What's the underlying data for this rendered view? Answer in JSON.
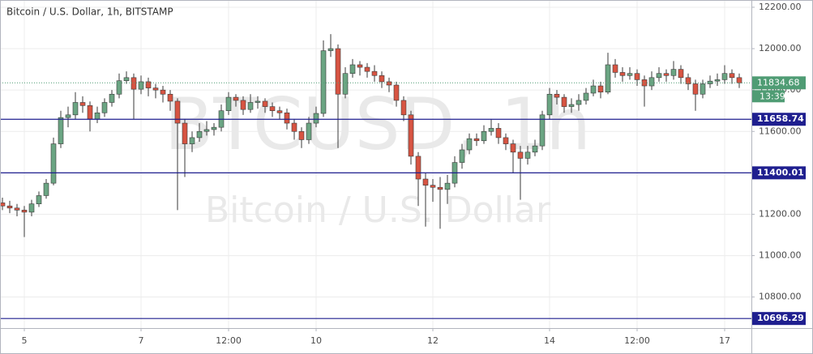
{
  "chart_data": {
    "type": "candlestick",
    "title": "Bitcoin / U.S. Dollar, 1h, BITSTAMP",
    "watermark": "BTCUSD, 1h",
    "watermark_subtitle": "Bitcoin / U.S. Dollar",
    "x": [
      -9,
      -6,
      -3,
      0,
      3,
      6,
      9,
      12,
      15,
      18,
      21,
      24,
      27,
      30,
      33,
      36,
      39,
      42,
      45,
      48,
      51,
      54,
      57,
      60,
      63,
      66,
      69,
      72,
      75,
      78,
      81,
      84,
      87,
      90,
      93,
      96,
      99,
      102,
      105,
      108,
      111,
      114,
      117,
      120,
      123,
      126,
      129,
      132,
      135,
      138,
      141,
      144,
      147,
      150,
      153,
      156,
      159,
      162,
      165,
      168,
      171,
      174,
      177,
      180,
      183,
      186,
      189,
      192,
      195,
      198,
      201,
      204,
      207,
      210,
      213,
      216,
      219,
      222,
      225,
      228,
      231,
      234,
      237,
      240,
      243,
      246,
      249,
      252,
      255,
      258,
      261,
      264,
      267,
      270,
      273,
      276,
      279,
      282,
      285,
      288,
      291,
      294
    ],
    "open": [
      11255,
      11240,
      11230,
      11220,
      11210,
      11250,
      11290,
      11350,
      11540,
      11667,
      11680,
      11740,
      11725,
      11660,
      11690,
      11740,
      11780,
      11845,
      11860,
      11804,
      11840,
      11810,
      11800,
      11780,
      11746,
      11640,
      11540,
      11570,
      11600,
      11609,
      11620,
      11700,
      11765,
      11750,
      11706,
      11740,
      11746,
      11720,
      11700,
      11690,
      11640,
      11600,
      11560,
      11640,
      11687,
      11990,
      12000,
      11780,
      11880,
      11922,
      11910,
      11890,
      11870,
      11840,
      11824,
      11750,
      11680,
      11480,
      11370,
      11340,
      11330,
      11320,
      11350,
      11450,
      11511,
      11565,
      11555,
      11600,
      11615,
      11570,
      11540,
      11500,
      11470,
      11500,
      11530,
      11680,
      11780,
      11765,
      11720,
      11730,
      11750,
      11785,
      11820,
      11790,
      11922,
      11885,
      11870,
      11880,
      11850,
      11820,
      11860,
      11880,
      11870,
      11900,
      11860,
      11830,
      11780,
      11830,
      11843,
      11850,
      11880,
      11860
    ],
    "high": [
      11280,
      11265,
      11250,
      11240,
      11270,
      11310,
      11370,
      11570,
      11700,
      11720,
      11790,
      11770,
      11745,
      11720,
      11760,
      11800,
      11880,
      11890,
      11880,
      11870,
      11860,
      11830,
      11820,
      11800,
      11760,
      11660,
      11600,
      11640,
      11650,
      11640,
      11730,
      11790,
      11780,
      11770,
      11780,
      11770,
      11760,
      11740,
      11720,
      11710,
      11660,
      11620,
      11670,
      11720,
      12040,
      12070,
      12020,
      11910,
      11950,
      11940,
      11930,
      11920,
      11890,
      11860,
      11840,
      11770,
      11700,
      11500,
      11400,
      11370,
      11380,
      11390,
      11480,
      11540,
      11590,
      11590,
      11630,
      11660,
      11640,
      11590,
      11560,
      11530,
      11530,
      11560,
      11700,
      11810,
      11800,
      11780,
      11760,
      11780,
      11810,
      11850,
      11840,
      11980,
      11950,
      11910,
      11910,
      11900,
      11870,
      11890,
      11910,
      11900,
      11940,
      11920,
      11880,
      11850,
      11850,
      11870,
      11880,
      11920,
      11900,
      11880
    ],
    "low": [
      11220,
      11205,
      11190,
      11090,
      11190,
      11235,
      11275,
      11340,
      11520,
      11620,
      11660,
      11690,
      11600,
      11640,
      11670,
      11720,
      11760,
      11830,
      11660,
      11780,
      11770,
      11760,
      11740,
      11700,
      11220,
      11380,
      11500,
      11550,
      11580,
      11580,
      11600,
      11680,
      11720,
      11680,
      11690,
      11710,
      11690,
      11670,
      11660,
      11610,
      11560,
      11520,
      11540,
      11620,
      11670,
      11960,
      11520,
      11760,
      11860,
      11870,
      11860,
      11840,
      11810,
      11790,
      11720,
      11650,
      11440,
      11240,
      11140,
      11260,
      11130,
      11250,
      11330,
      11420,
      11490,
      11530,
      11540,
      11580,
      11540,
      11510,
      11400,
      11270,
      11440,
      11480,
      11510,
      11660,
      11730,
      11690,
      11690,
      11700,
      11730,
      11770,
      11760,
      11780,
      11860,
      11840,
      11850,
      11820,
      11720,
      11800,
      11840,
      11840,
      11850,
      11830,
      11800,
      11700,
      11760,
      11810,
      11820,
      11830,
      11830,
      11810
    ],
    "close": [
      11240,
      11230,
      11220,
      11210,
      11250,
      11290,
      11350,
      11540,
      11667,
      11680,
      11740,
      11725,
      11660,
      11690,
      11740,
      11780,
      11845,
      11860,
      11804,
      11840,
      11810,
      11800,
      11780,
      11746,
      11640,
      11540,
      11570,
      11600,
      11609,
      11620,
      11700,
      11765,
      11750,
      11706,
      11740,
      11746,
      11720,
      11700,
      11690,
      11640,
      11600,
      11560,
      11640,
      11687,
      11990,
      12000,
      11780,
      11880,
      11922,
      11910,
      11890,
      11870,
      11840,
      11824,
      11750,
      11680,
      11480,
      11370,
      11340,
      11330,
      11320,
      11350,
      11450,
      11511,
      11565,
      11555,
      11600,
      11615,
      11570,
      11540,
      11500,
      11470,
      11500,
      11530,
      11680,
      11780,
      11765,
      11720,
      11730,
      11750,
      11785,
      11820,
      11790,
      11922,
      11885,
      11870,
      11880,
      11850,
      11820,
      11860,
      11880,
      11870,
      11900,
      11860,
      11830,
      11780,
      11830,
      11843,
      11850,
      11880,
      11860,
      11834.68
    ],
    "up_color": "#6ba583",
    "down_color": "#d75442",
    "levels": [
      11658.74,
      11400.01,
      10696.29
    ],
    "level_color": "#1f1f8f",
    "last_price": 11834.68,
    "last_price_color": "#4f9c74",
    "countdown": "13:39",
    "xlim": [
      -10,
      299
    ],
    "ylim": [
      10650,
      12235
    ],
    "xticks": [
      {
        "value": 0,
        "label": "5"
      },
      {
        "value": 48,
        "label": "7"
      },
      {
        "value": 84,
        "label": "12:00"
      },
      {
        "value": 120,
        "label": "10"
      },
      {
        "value": 168,
        "label": "12"
      },
      {
        "value": 216,
        "label": "14"
      },
      {
        "value": 252,
        "label": "12:00"
      },
      {
        "value": 288,
        "label": "17"
      }
    ],
    "yticks": [
      {
        "value": 10800,
        "label": "10800.00"
      },
      {
        "value": 11000,
        "label": "11000.00"
      },
      {
        "value": 11200,
        "label": "11200.00"
      },
      {
        "value": 11400,
        "label": "11400.00"
      },
      {
        "value": 11600,
        "label": "11600.00"
      },
      {
        "value": 11800,
        "label": "11800.00"
      },
      {
        "value": 12000,
        "label": "12000.00"
      },
      {
        "value": 12200,
        "label": "12200.00"
      }
    ],
    "grid": true
  }
}
